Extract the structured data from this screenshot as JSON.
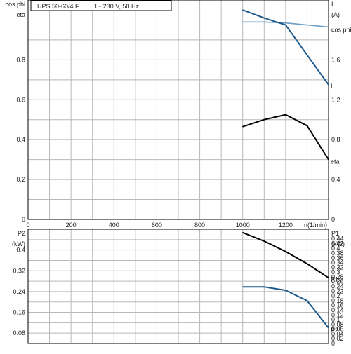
{
  "title": "UPS 50-60/4 F",
  "supply": "1~ 230 V, 50 Hz",
  "colors": {
    "grid": "#b8b8b8",
    "axis": "#000000",
    "eta": "#000000",
    "cos_phi": "#6f9fc4",
    "current": "#1f5a8c",
    "p1": "#000000",
    "p2": "#1f5a8c"
  },
  "chart_data": [
    {
      "type": "line",
      "x_axis": {
        "label": "n(1/min)",
        "range": [
          0,
          1400
        ],
        "ticks": [
          0,
          200,
          400,
          600,
          800,
          1000,
          1200
        ],
        "tick_labels": [
          "0",
          "200",
          "400",
          "600",
          "800",
          "1000",
          "1200"
        ]
      },
      "y_left": {
        "label": "cos phi",
        "label2": "eta",
        "range": [
          0,
          1.0
        ],
        "ticks": [
          0,
          0.2,
          0.4,
          0.6,
          0.8
        ],
        "tick_labels": [
          "0",
          "0.2",
          "0.4",
          "0.6",
          "0.8"
        ]
      },
      "y_right": {
        "label": "I",
        "unit": "(A)",
        "range": [
          0,
          2.0
        ],
        "ticks": [
          0,
          0.4,
          0.8,
          1.2,
          1.6
        ],
        "tick_labels": [
          "0",
          "0.4",
          "0.8",
          "1.2",
          "1.6"
        ]
      },
      "grid": true,
      "series": [
        {
          "name": "cos phi",
          "axis": "left",
          "x": [
            1000,
            1100,
            1200,
            1300,
            1400
          ],
          "y": [
            0.99,
            0.99,
            0.985,
            0.975,
            0.965
          ]
        },
        {
          "name": "I",
          "axis": "right",
          "x": [
            1000,
            1100,
            1200,
            1300,
            1400
          ],
          "y": [
            2.1,
            2.02,
            1.95,
            1.65,
            1.35
          ]
        },
        {
          "name": "eta",
          "axis": "left",
          "x": [
            1000,
            1100,
            1200,
            1300,
            1400
          ],
          "y": [
            0.465,
            0.5,
            0.525,
            0.47,
            0.3
          ]
        }
      ]
    },
    {
      "type": "line",
      "x_axis": {
        "range": [
          0,
          1400
        ]
      },
      "y_left": {
        "label": "P2",
        "unit": "(kW)",
        "range": [
          0.04,
          0.48
        ],
        "ticks": [
          0.08,
          0.16,
          0.24,
          0.32,
          0.4
        ],
        "tick_labels": [
          "0.08",
          "0.16",
          "0.24",
          "0.32",
          "0.4"
        ]
      },
      "y_right": {
        "label": "P1",
        "unit": "(kW)",
        "range": [
          0,
          0.48
        ],
        "ticks": [
          0,
          0.02,
          0.04,
          0.06,
          0.08,
          0.1,
          0.12,
          0.14,
          0.16,
          0.18,
          0.2,
          0.22,
          0.24,
          0.26,
          0.28,
          0.3,
          0.32,
          0.34,
          0.36,
          0.38,
          0.4,
          0.42,
          0.44
        ],
        "tick_labels": [
          "0",
          "0.02",
          "0.04",
          "0.06",
          "0.08",
          "0.1",
          "0.12",
          "0.14",
          "0.16",
          "0.18",
          "0.2",
          "0.22",
          "0.24",
          "0.26",
          "0.28",
          "0.3",
          "0.32",
          "0.34",
          "0.36",
          "0.38",
          "0.4",
          "0.42",
          "0.44"
        ]
      },
      "grid": true,
      "series": [
        {
          "name": "P1",
          "axis": "right",
          "x": [
            1000,
            1100,
            1200,
            1300,
            1400
          ],
          "y": [
            0.466,
            0.43,
            0.386,
            0.335,
            0.276
          ]
        },
        {
          "name": "P2",
          "axis": "left",
          "x": [
            1000,
            1100,
            1200,
            1300,
            1400
          ],
          "y": [
            0.258,
            0.258,
            0.245,
            0.205,
            0.1
          ]
        }
      ]
    }
  ]
}
